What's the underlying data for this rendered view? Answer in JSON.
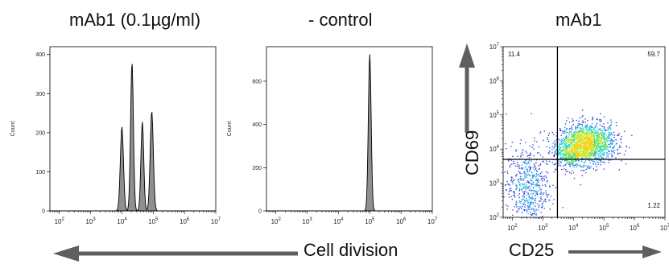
{
  "labels": {
    "cell_division": "Cell division",
    "cd25": "CD25",
    "cd69": "CD69"
  },
  "colors": {
    "fill": "#8f8f8f",
    "stroke": "#000000",
    "arrow": "#5f5f5f"
  },
  "chart_data": [
    {
      "type": "area",
      "title": "mAb1 (0.1µg/ml)",
      "ylabel": "Count",
      "xscale": "log",
      "xlim": [
        50,
        10000000
      ],
      "ylim": [
        0,
        420
      ],
      "yticks": [
        0,
        100,
        200,
        300,
        400
      ],
      "xtick_labels": [
        {
          "v": 100,
          "b": "10",
          "e": "2"
        },
        {
          "v": 1000,
          "b": "10",
          "e": "3"
        },
        {
          "v": 10000,
          "b": "10",
          "e": "4"
        },
        {
          "v": 100000,
          "b": "10",
          "e": "5"
        },
        {
          "v": 1000000,
          "b": "10",
          "e": "6"
        },
        {
          "v": 10000000,
          "b": "10",
          "e": "7"
        }
      ],
      "peaks": [
        {
          "x": 10000,
          "y": 215,
          "w": 0.05
        },
        {
          "x": 21000,
          "y": 380,
          "w": 0.045
        },
        {
          "x": 45000,
          "y": 228,
          "w": 0.045
        },
        {
          "x": 90000,
          "y": 255,
          "w": 0.05
        }
      ]
    },
    {
      "type": "area",
      "title": "- control",
      "ylabel": "Count",
      "xscale": "log",
      "xlim": [
        50,
        10000000
      ],
      "ylim": [
        0,
        760
      ],
      "yticks": [
        0,
        200,
        400,
        600
      ],
      "xtick_labels": [
        {
          "v": 100,
          "b": "10",
          "e": "2"
        },
        {
          "v": 1000,
          "b": "10",
          "e": "3"
        },
        {
          "v": 10000,
          "b": "10",
          "e": "4"
        },
        {
          "v": 100000,
          "b": "10",
          "e": "5"
        },
        {
          "v": 1000000,
          "b": "10",
          "e": "6"
        },
        {
          "v": 10000000,
          "b": "10",
          "e": "7"
        }
      ],
      "peaks": [
        {
          "x": 100000,
          "y": 725,
          "w": 0.045
        }
      ]
    },
    {
      "type": "scatter",
      "title": "mAb1",
      "xlabel": "CD25",
      "ylabel": "CD69",
      "xscale": "log",
      "yscale": "log",
      "xlim": [
        50,
        10000000
      ],
      "ylim": [
        100,
        10000000
      ],
      "xtick_labels": [
        {
          "v": 100,
          "b": "10",
          "e": "2"
        },
        {
          "v": 1000,
          "b": "10",
          "e": "3"
        },
        {
          "v": 10000,
          "b": "10",
          "e": "4"
        },
        {
          "v": 100000,
          "b": "10",
          "e": "5"
        },
        {
          "v": 1000000,
          "b": "10",
          "e": "6"
        },
        {
          "v": 10000000,
          "b": "10",
          "e": "7"
        }
      ],
      "ytick_labels": [
        {
          "v": 100,
          "b": "10",
          "e": "2"
        },
        {
          "v": 1000,
          "b": "10",
          "e": "3"
        },
        {
          "v": 10000,
          "b": "10",
          "e": "4"
        },
        {
          "v": 100000,
          "b": "10",
          "e": "5"
        },
        {
          "v": 1000000,
          "b": "10",
          "e": "6"
        },
        {
          "v": 10000000,
          "b": "10",
          "e": "7"
        }
      ],
      "gates": {
        "x": 3000,
        "y": 5000
      },
      "quadrants": [
        {
          "label": "11.4",
          "pos": "top-left"
        },
        {
          "label": "59.7",
          "pos": "top-right"
        },
        {
          "label": "1.22",
          "pos": "bottom-right"
        }
      ],
      "clusters": [
        {
          "cx": 30000,
          "cy": 15000,
          "sx": 0.45,
          "sy": 0.3,
          "n": 1400
        },
        {
          "cx": 8000,
          "cy": 9000,
          "sx": 0.3,
          "sy": 0.25,
          "n": 500
        },
        {
          "cx": 300,
          "cy": 800,
          "sx": 0.35,
          "sy": 0.6,
          "n": 550
        }
      ]
    }
  ]
}
